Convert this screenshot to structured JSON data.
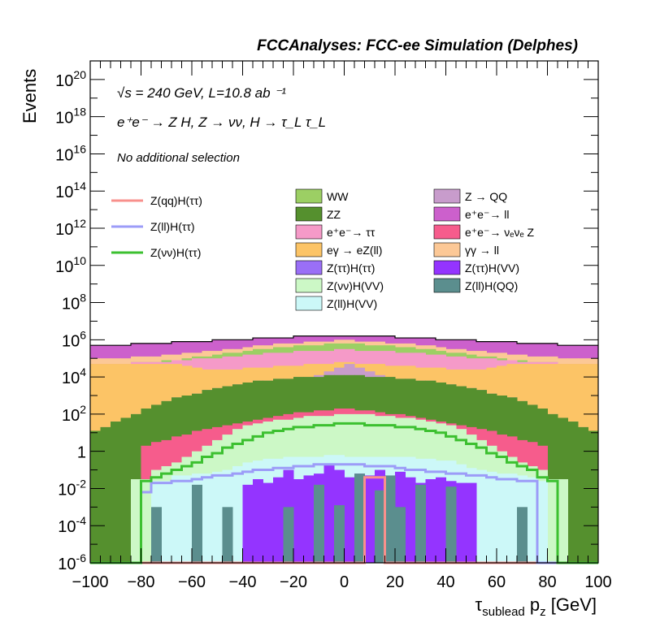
{
  "chart_data": {
    "type": "histogram-stacked-log",
    "title": "FCCAnalyses: FCC-ee Simulation (Delphes)",
    "xlabel": "τ_sublead p_z [GeV]",
    "ylabel": "Events",
    "xlim": [
      -100,
      100
    ],
    "ylim": [
      1e-06,
      1e+21
    ],
    "log_y": true,
    "grid": false,
    "annotations": {
      "sqrt_s": "√s = 240 GeV, L=10.8 ab ⁻¹",
      "process": "e⁺e⁻ → Z H, Z → νν, H → τ_L τ_L",
      "selection": "No additional selection"
    },
    "x_ticks": [
      "−100",
      "−80",
      "−60",
      "−40",
      "−20",
      "0",
      "20",
      "40",
      "60",
      "80",
      "100"
    ],
    "y_ticks": [
      "10⁻⁶",
      "10⁻⁴",
      "10⁻²",
      "1",
      "10²",
      "10⁴",
      "10⁶",
      "10⁸",
      "10¹⁰",
      "10¹²",
      "10¹⁴",
      "10¹⁶",
      "10¹⁸",
      "10²⁰"
    ],
    "background_series": [
      {
        "name": "WW",
        "color": "#9ccf64"
      },
      {
        "name": "ZZ",
        "color": "#55902e"
      },
      {
        "name": "e⁺e⁻→ ττ",
        "color": "#f59ac8"
      },
      {
        "name": "eγ → eZ(ll)",
        "color": "#fcc466"
      },
      {
        "name": "Z(ττ)H(ττ)",
        "color": "#9a6ff6"
      },
      {
        "name": "Z(νν)H(VV)",
        "color": "#ccf8c6"
      },
      {
        "name": "Z(ll)H(VV)",
        "color": "#ccf8f8"
      },
      {
        "name": "Z → QQ",
        "color": "#c89ccc"
      },
      {
        "name": "e⁺e⁻→ ll",
        "color": "#cc60cc"
      },
      {
        "name": "e⁺e⁻→ νₑνₑ Z",
        "color": "#f65c8c"
      },
      {
        "name": "γγ → ll",
        "color": "#fcc896"
      },
      {
        "name": "Z(ττ)H(VV)",
        "color": "#9434ff"
      },
      {
        "name": "Z(ll)H(QQ)",
        "color": "#5b8e8e"
      }
    ],
    "signal_series": [
      {
        "name": "Z(qq)H(ττ)",
        "color": "#f8908c"
      },
      {
        "name": "Z(ll)H(ττ)",
        "color": "#9c9cf8"
      },
      {
        "name": "Z(νν)H(ττ)",
        "color": "#3cc030"
      }
    ],
    "bins": {
      "start": -100,
      "width": 4
    },
    "stack_tops_log10": {
      "order_bottom_to_top": [
        "Z(ll)H(QQ)",
        "Z(ττ)H(VV)",
        "Z(ll)H(VV)",
        "Z(νν)H(VV)",
        "e⁺e⁻→ νₑνₑ Z",
        "ZZ",
        "Z → QQ",
        "eγ → eZ(ll)",
        "e⁺e⁻→ ττ",
        "WW",
        "γγ → ll",
        "e⁺e⁻→ ll"
      ],
      "Z(ll)H(QQ)": [
        -99,
        -99,
        -99,
        -99,
        -99,
        -99,
        -3.0,
        -99,
        -99,
        -99,
        -1.8,
        -99,
        -99,
        -3.0,
        -99,
        -99,
        -99,
        -99,
        -99,
        -3.0,
        -99,
        -99,
        -1.8,
        -99,
        -2.9,
        -99,
        -1.2,
        -99,
        -2.1,
        -1.3,
        -3.0,
        -99,
        -1.8,
        -99,
        -99,
        -1.9,
        -99,
        -99,
        -99,
        -99,
        -99,
        -99,
        -3.0,
        -99,
        -99,
        -99,
        -99,
        -99,
        -99,
        -99
      ],
      "Z(ττ)H(VV)": [
        -99,
        -99,
        -99,
        -99,
        -99,
        -99,
        -99,
        -99,
        -99,
        -99,
        -99,
        -99,
        -99,
        -99,
        -99,
        -1.8,
        -1.5,
        -1.7,
        -1.4,
        -1.0,
        -1.5,
        -1.3,
        -1.2,
        -0.7,
        -1.0,
        -1.4,
        -1.2,
        -1.3,
        -1.0,
        -1.4,
        -1.1,
        -1.4,
        -1.7,
        -1.5,
        -1.4,
        -1.6,
        -1.7,
        -1.7,
        -99,
        -99,
        -99,
        -99,
        -99,
        -99,
        -99,
        -99,
        -99,
        -99,
        -99,
        -99
      ],
      "Z(ll)H(VV)": [
        -99,
        -99,
        -99,
        -99,
        -99,
        -99,
        -1.6,
        -1.6,
        -1.3,
        -1.3,
        -1.2,
        -1.2,
        -1.1,
        -1.0,
        -0.8,
        -0.6,
        -0.5,
        -0.4,
        -0.4,
        -0.3,
        -0.3,
        -0.3,
        -0.3,
        -0.2,
        -0.2,
        -0.3,
        -0.3,
        -0.3,
        -0.3,
        -0.3,
        -0.3,
        -0.3,
        -0.4,
        -0.4,
        -0.5,
        -0.5,
        -0.7,
        -0.9,
        -1.0,
        -1.1,
        -1.2,
        -1.2,
        -1.3,
        -1.4,
        -1.6,
        -99,
        -99,
        -99,
        -99,
        -99
      ],
      "Z(νν)H(VV)": [
        -99,
        -99,
        -99,
        -99,
        -1.5,
        -1.5,
        -1.0,
        -0.8,
        -0.6,
        -0.3,
        0.0,
        0.3,
        0.6,
        0.9,
        1.2,
        1.4,
        1.5,
        1.6,
        1.7,
        1.7,
        1.8,
        1.9,
        1.9,
        1.9,
        2.0,
        2.0,
        2.0,
        2.0,
        1.9,
        1.9,
        1.8,
        1.8,
        1.7,
        1.6,
        1.5,
        1.4,
        1.2,
        0.9,
        0.6,
        0.3,
        0.0,
        -0.3,
        -0.6,
        -0.8,
        -1.0,
        -1.5,
        -1.5,
        -99,
        -99,
        -99
      ],
      "e⁺e⁻→ νₑνₑ Z": [
        -6,
        -6,
        -6,
        -6,
        -6,
        0.3,
        0.5,
        0.6,
        0.8,
        0.9,
        1.1,
        1.2,
        1.3,
        1.4,
        1.5,
        1.6,
        1.7,
        1.8,
        1.9,
        2.0,
        2.1,
        2.1,
        2.2,
        2.2,
        2.3,
        2.3,
        2.2,
        2.2,
        2.1,
        2.0,
        2.0,
        1.9,
        1.8,
        1.7,
        1.6,
        1.5,
        1.4,
        1.3,
        1.2,
        1.1,
        0.9,
        0.8,
        0.6,
        0.5,
        0.3,
        -6,
        -6,
        -6,
        -6,
        -6
      ],
      "ZZ": [
        1.1,
        1.3,
        1.6,
        1.8,
        2.0,
        2.3,
        2.5,
        2.7,
        2.9,
        3.0,
        3.1,
        3.3,
        3.4,
        3.5,
        3.6,
        3.7,
        3.8,
        3.8,
        3.9,
        3.9,
        4.0,
        4.0,
        4.0,
        4.1,
        4.1,
        4.1,
        4.1,
        4.0,
        4.0,
        4.0,
        3.9,
        3.9,
        3.8,
        3.8,
        3.7,
        3.6,
        3.5,
        3.4,
        3.3,
        3.1,
        3.0,
        2.9,
        2.7,
        2.5,
        2.3,
        2.0,
        1.8,
        1.6,
        1.3,
        1.1
      ],
      "Z → QQ": [
        1.1,
        1.3,
        1.6,
        1.8,
        2.0,
        2.3,
        2.5,
        2.7,
        2.9,
        3.0,
        3.1,
        3.3,
        3.4,
        3.5,
        3.6,
        3.7,
        3.8,
        3.8,
        3.9,
        3.9,
        4.0,
        4.0,
        4.1,
        4.3,
        4.5,
        4.7,
        4.5,
        4.3,
        4.1,
        4.0,
        3.9,
        3.9,
        3.8,
        3.8,
        3.7,
        3.6,
        3.5,
        3.4,
        3.3,
        3.1,
        3.0,
        2.9,
        2.7,
        2.5,
        2.3,
        2.0,
        1.8,
        1.6,
        1.3,
        1.1
      ],
      "eγ → eZ(ll)": [
        4.7,
        4.7,
        4.7,
        4.7,
        4.7,
        4.7,
        4.7,
        4.7,
        4.7,
        4.6,
        4.5,
        4.4,
        4.4,
        4.4,
        4.4,
        4.5,
        4.5,
        4.5,
        4.6,
        4.6,
        4.6,
        4.7,
        4.7,
        4.7,
        4.8,
        4.8,
        4.7,
        4.7,
        4.7,
        4.6,
        4.6,
        4.6,
        4.5,
        4.5,
        4.5,
        4.4,
        4.4,
        4.4,
        4.4,
        4.5,
        4.6,
        4.7,
        4.7,
        4.7,
        4.7,
        4.7,
        4.7,
        4.7,
        4.7,
        4.7
      ],
      "e⁺e⁻→ ττ": [
        4.7,
        4.7,
        4.7,
        4.7,
        4.8,
        4.8,
        4.8,
        4.8,
        4.9,
        4.9,
        5.0,
        5.0,
        5.0,
        5.1,
        5.1,
        5.2,
        5.2,
        5.3,
        5.3,
        5.3,
        5.4,
        5.4,
        5.4,
        5.4,
        5.5,
        5.5,
        5.4,
        5.4,
        5.4,
        5.4,
        5.3,
        5.3,
        5.3,
        5.2,
        5.2,
        5.1,
        5.1,
        5.0,
        5.0,
        5.0,
        4.9,
        4.9,
        4.8,
        4.8,
        4.8,
        4.8,
        4.7,
        4.7,
        4.7,
        4.7
      ],
      "WW": [
        4.7,
        4.7,
        4.7,
        4.7,
        4.8,
        4.8,
        4.8,
        4.9,
        4.9,
        5.0,
        5.1,
        5.1,
        5.2,
        5.3,
        5.3,
        5.4,
        5.5,
        5.5,
        5.6,
        5.6,
        5.7,
        5.7,
        5.7,
        5.8,
        5.8,
        5.8,
        5.8,
        5.7,
        5.7,
        5.7,
        5.6,
        5.6,
        5.5,
        5.5,
        5.4,
        5.3,
        5.3,
        5.2,
        5.1,
        5.1,
        5.0,
        4.9,
        4.9,
        4.8,
        4.8,
        4.8,
        4.7,
        4.7,
        4.7,
        4.7
      ],
      "γγ → ll": [
        5.0,
        5.0,
        5.0,
        5.0,
        5.1,
        5.1,
        5.1,
        5.2,
        5.2,
        5.3,
        5.3,
        5.4,
        5.4,
        5.5,
        5.5,
        5.6,
        5.7,
        5.7,
        5.8,
        5.8,
        5.8,
        5.9,
        5.9,
        5.9,
        6.0,
        6.0,
        5.9,
        5.9,
        5.9,
        5.8,
        5.8,
        5.8,
        5.7,
        5.7,
        5.6,
        5.5,
        5.5,
        5.4,
        5.4,
        5.3,
        5.3,
        5.2,
        5.2,
        5.1,
        5.1,
        5.1,
        5.0,
        5.0,
        5.0,
        5.0
      ],
      "e⁺e⁻→ ll": [
        5.7,
        5.7,
        5.7,
        5.7,
        5.8,
        5.8,
        5.8,
        5.8,
        5.9,
        5.9,
        5.9,
        5.9,
        6.0,
        6.0,
        6.0,
        6.0,
        6.1,
        6.1,
        6.1,
        6.1,
        6.2,
        6.2,
        6.2,
        6.2,
        6.2,
        6.2,
        6.2,
        6.2,
        6.2,
        6.2,
        6.1,
        6.1,
        6.1,
        6.1,
        6.0,
        6.0,
        6.0,
        6.0,
        5.9,
        5.9,
        5.9,
        5.9,
        5.8,
        5.8,
        5.8,
        5.8,
        5.7,
        5.7,
        5.7,
        5.7
      ]
    },
    "signal_log10": {
      "Z(qq)H(ττ)": [
        -99,
        -99,
        -99,
        -99,
        -99,
        -99,
        -99,
        -99,
        -99,
        -99,
        -99,
        -99,
        -99,
        -99,
        -99,
        -99,
        -99,
        -99,
        -99,
        -99,
        -99,
        -99,
        -99,
        -99,
        -99,
        -99,
        -99,
        -1.4,
        -1.4,
        -99,
        -99,
        -99,
        -99,
        -99,
        -99,
        -99,
        -99,
        -99,
        -99,
        -99,
        -99,
        -99,
        -99,
        -99,
        -99,
        -99,
        -99,
        -99,
        -99,
        -99
      ],
      "Z(ll)H(ττ)": [
        -99,
        -99,
        -99,
        -99,
        -99,
        -2.2,
        -1.7,
        -1.7,
        -1.6,
        -1.6,
        -1.5,
        -1.4,
        -1.3,
        -1.3,
        -1.2,
        -1.1,
        -1.0,
        -1.0,
        -0.9,
        -0.9,
        -0.8,
        -0.8,
        -0.7,
        -0.7,
        -0.7,
        -0.7,
        -0.7,
        -0.8,
        -0.8,
        -0.8,
        -0.9,
        -1.0,
        -1.0,
        -1.1,
        -1.1,
        -1.2,
        -1.2,
        -1.3,
        -1.3,
        -1.4,
        -1.5,
        -1.5,
        -1.6,
        -1.6,
        -99,
        -99,
        -99,
        -99,
        -99,
        -99
      ],
      "Z(νν)H(ττ)": [
        -99,
        -99,
        -99,
        -99,
        -99,
        -1.6,
        -1.4,
        -1.2,
        -1.0,
        -0.8,
        -0.6,
        -0.3,
        -0.1,
        0.2,
        0.4,
        0.6,
        0.8,
        1.0,
        1.1,
        1.2,
        1.3,
        1.3,
        1.4,
        1.4,
        1.5,
        1.5,
        1.5,
        1.4,
        1.4,
        1.4,
        1.3,
        1.3,
        1.2,
        1.1,
        1.0,
        0.8,
        0.6,
        0.4,
        0.2,
        -0.1,
        -0.3,
        -0.6,
        -0.8,
        -1.0,
        -1.4,
        -1.6,
        -99,
        -99,
        -99,
        -99
      ]
    }
  }
}
